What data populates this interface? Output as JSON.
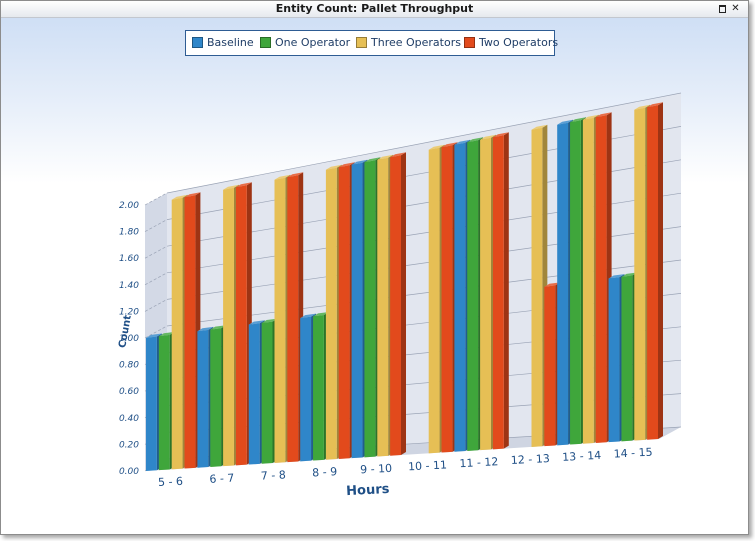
{
  "window": {
    "title": "Entity Count: Pallet Throughput"
  },
  "icons": {
    "restore": "restore-icon",
    "close": "close-icon",
    "close_glyph": "✕"
  },
  "colors": {
    "baseline": "#2f86c9",
    "one_operator": "#3fa63b",
    "three_operators": "#e6bf55",
    "two_operators": "#e24a1c",
    "axis_text": "#1f4f86",
    "wall": "#e2e6ef",
    "floor": "#cfd5e2"
  },
  "chart_data": {
    "type": "bar",
    "title": "Entity Count: Pallet Throughput",
    "xlabel": "Hours",
    "ylabel": "Count",
    "categories": [
      "5 - 6",
      "6 - 7",
      "7 - 8",
      "8 - 9",
      "9 - 10",
      "10 - 11",
      "11 - 12",
      "12 - 13",
      "13 - 14",
      "14 - 15"
    ],
    "yticks": [
      "0.00",
      "0.20",
      "0.40",
      "0.60",
      "0.80",
      "1.00",
      "1.20",
      "1.40",
      "1.60",
      "1.80",
      "2.00"
    ],
    "ylim": [
      0,
      2
    ],
    "grid": true,
    "legend_position": "top-center",
    "series": [
      {
        "name": "Baseline",
        "values": [
          1,
          1,
          1,
          1,
          2,
          0,
          2,
          0,
          2,
          1
        ]
      },
      {
        "name": "One Operator",
        "values": [
          1,
          1,
          1,
          1,
          2,
          0,
          2,
          0,
          2,
          1
        ]
      },
      {
        "name": "Three Operators",
        "values": [
          2,
          2,
          2,
          2,
          2,
          2,
          2,
          2,
          2,
          2
        ]
      },
      {
        "name": "Two Operators",
        "values": [
          2,
          2,
          2,
          2,
          2,
          2,
          2,
          1,
          2,
          2
        ]
      }
    ]
  }
}
